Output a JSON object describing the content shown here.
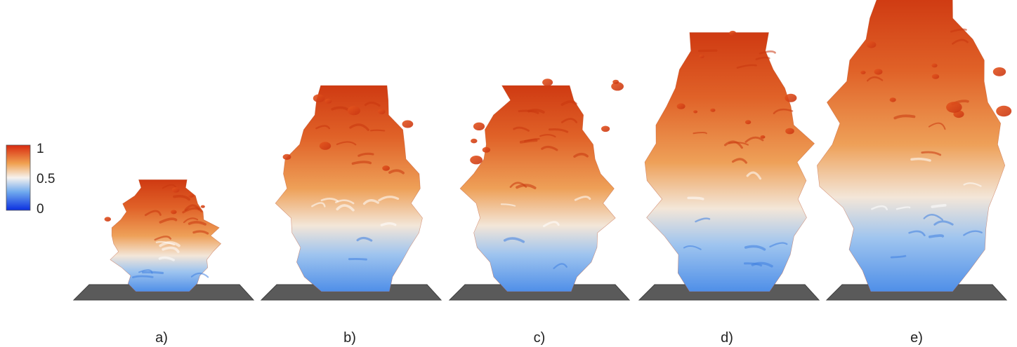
{
  "colorbar": {
    "ticks": [
      "1",
      "0.5",
      "0"
    ],
    "colors": {
      "high": "#d82a10",
      "upper_mid": "#f0a050",
      "mid": "#f6f2ee",
      "lower_mid": "#6fa9ee",
      "low": "#0a2fe0"
    }
  },
  "panels": [
    {
      "label": "a)",
      "plume_scale": 0.38
    },
    {
      "label": "b)",
      "plume_scale": 0.7
    },
    {
      "label": "c)",
      "plume_scale": 0.7
    },
    {
      "label": "d)",
      "plume_scale": 0.88
    },
    {
      "label": "e)",
      "plume_scale": 1.0
    }
  ],
  "colors": {
    "plate": "#5a5a5a",
    "plate_edge": "#3f3f3f",
    "text": "#222222"
  }
}
